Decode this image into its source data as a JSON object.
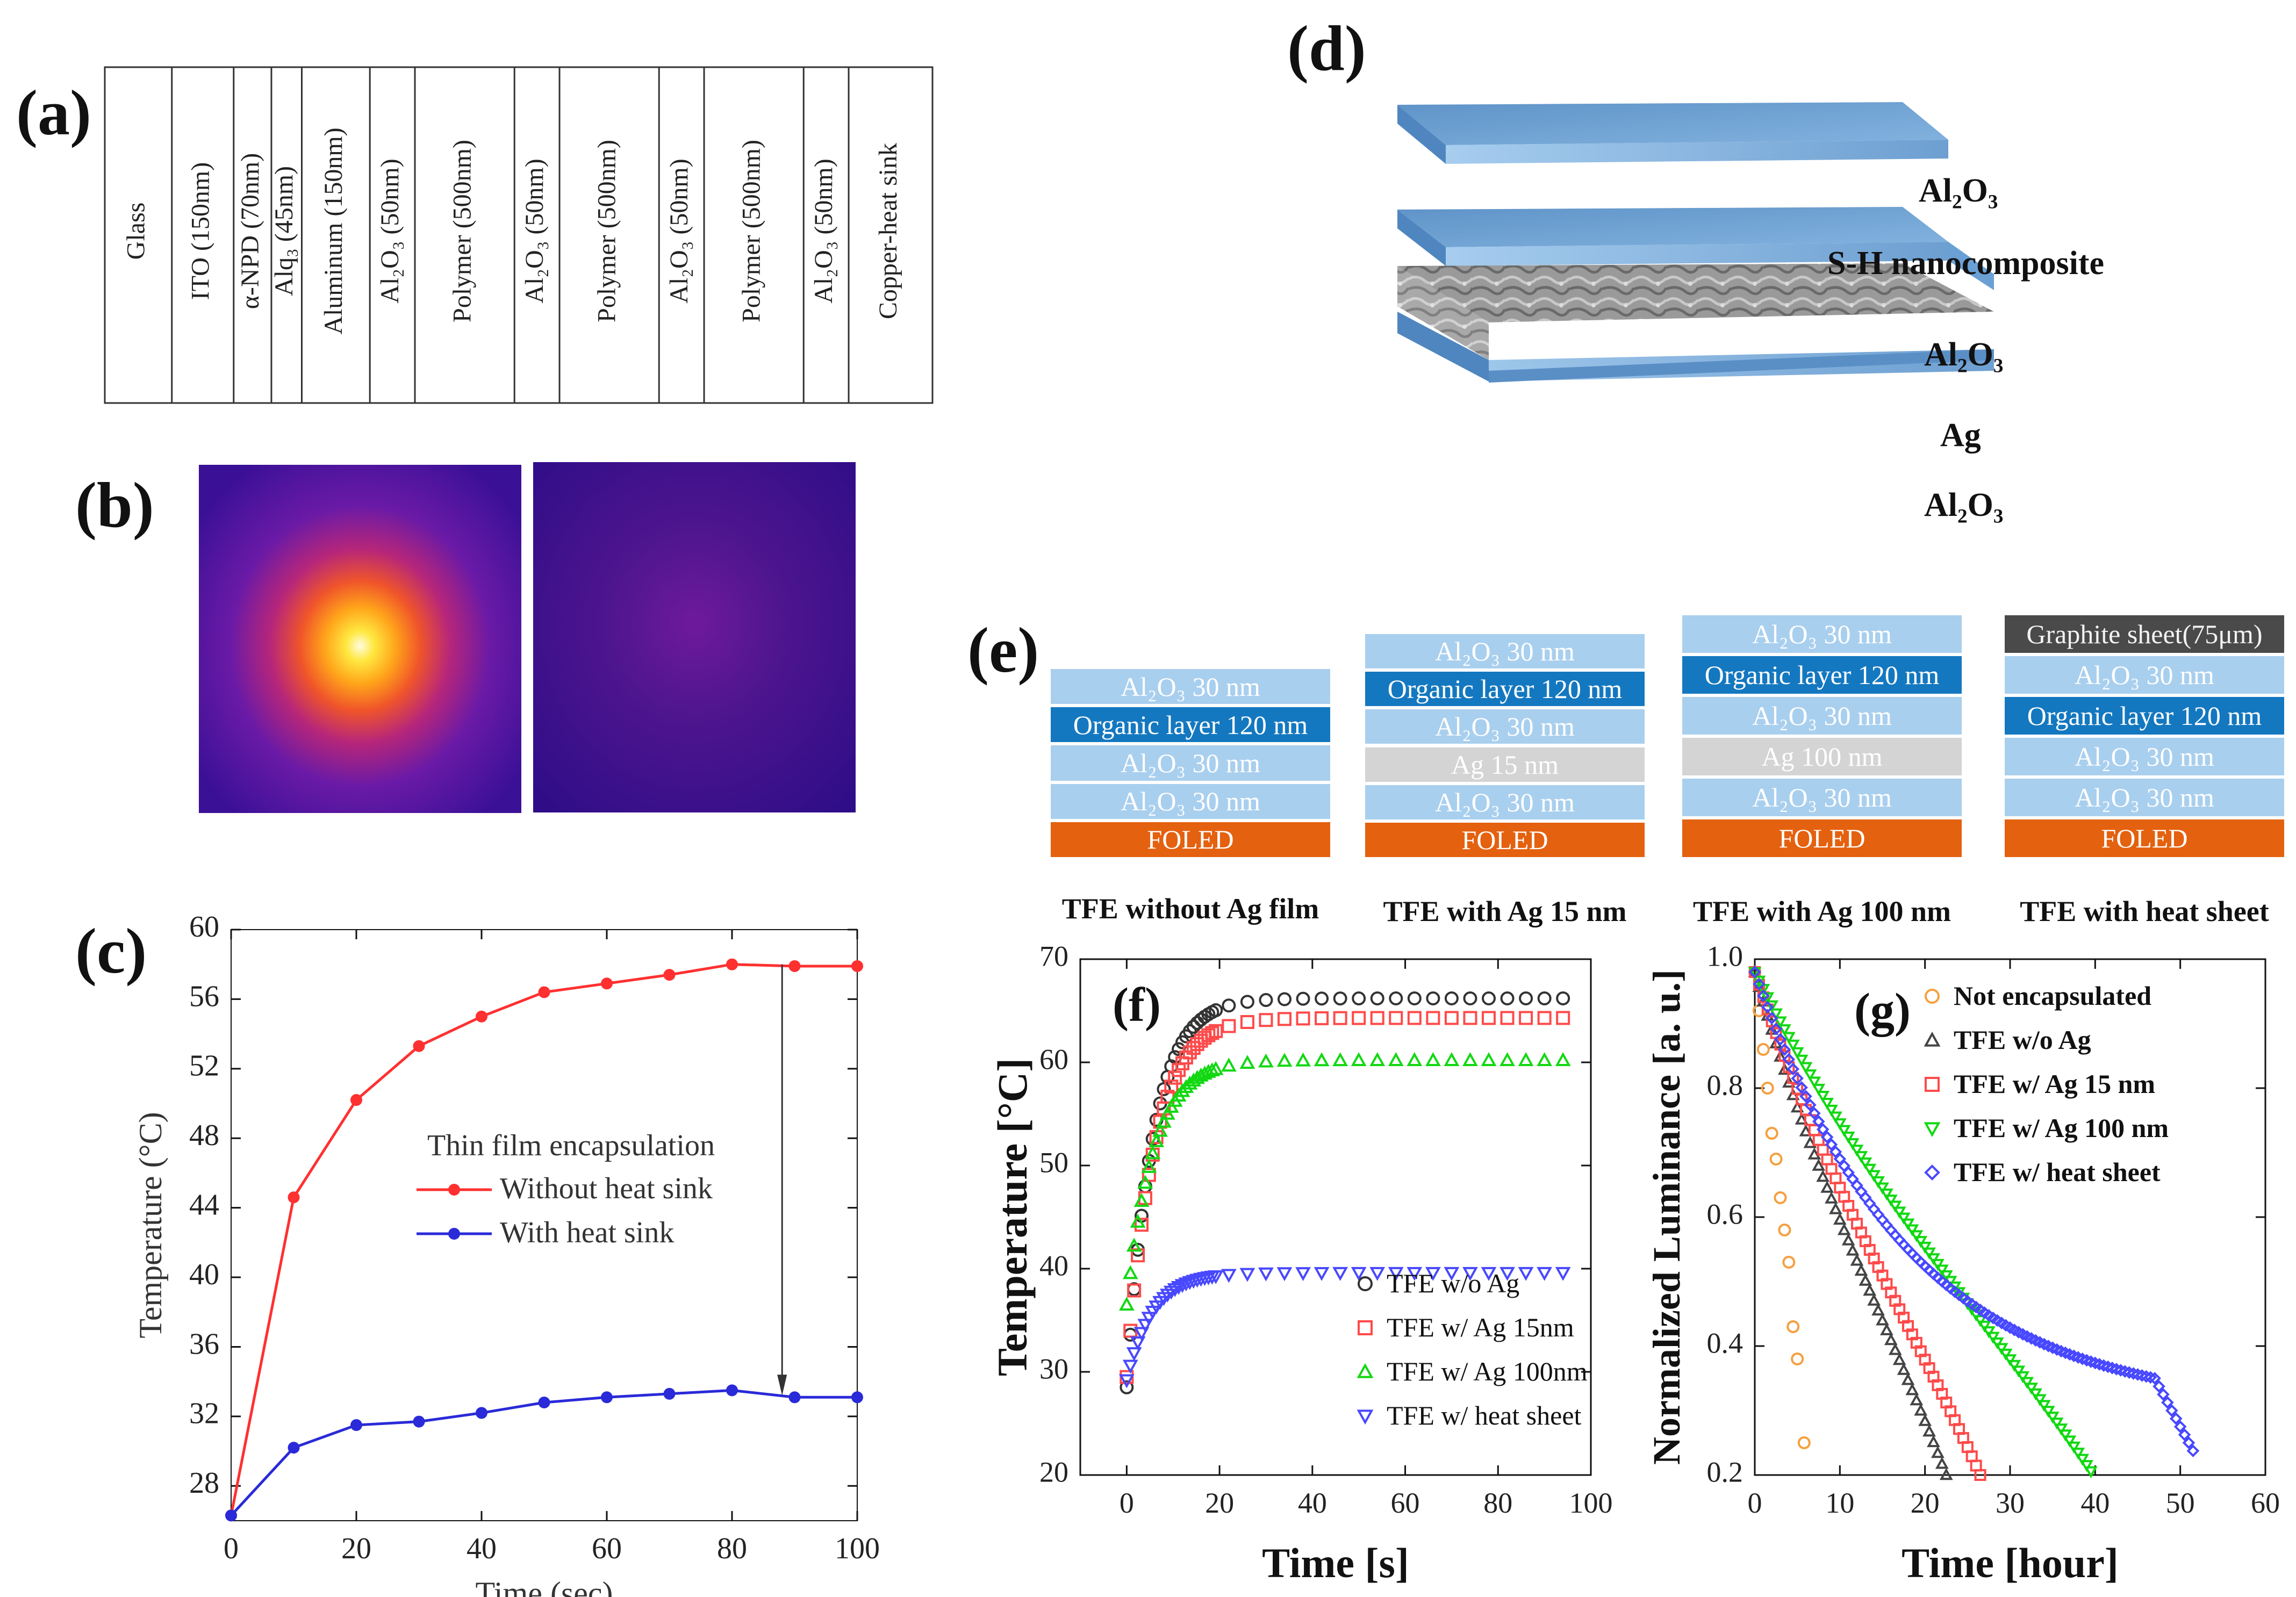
{
  "panel_labels": {
    "a": "(a)",
    "b": "(b)",
    "c": "(c)",
    "d": "(d)",
    "e": "(e)",
    "f": "(f)",
    "g": "(g)"
  },
  "panel_a": {
    "layers": [
      "Glass",
      "ITO (150nm)",
      "α-NPD (70nm)",
      "Alq₃ (45nm)",
      "Aluminum (150nm)",
      "Al₂O₃ (50nm)",
      "Polymer (500nm)",
      "Al₂O₃ (50nm)",
      "Polymer (500nm)",
      "Al₂O₃ (50nm)",
      "Polymer (500nm)",
      "Al₂O₃ (50nm)",
      "Copper-heat sink"
    ]
  },
  "panel_b": {
    "description_colors": {
      "hot": "#fff36a",
      "mid": "#f0552a",
      "cool": "#7a1fa8",
      "background": "#3a1096"
    }
  },
  "panel_d": {
    "labels": [
      "Al₂O₃",
      "S-H nanocomposite",
      "Al₂O₃",
      "Ag",
      "Al₂O₃"
    ],
    "colors": {
      "alumina": "#6fa3d4",
      "silver": "#9a9a9a"
    }
  },
  "panel_e": {
    "stacks": [
      {
        "caption": "TFE without Ag film",
        "layers": [
          "Al₂O₃ 30 nm",
          "Organic layer 120 nm",
          "Al₂O₃ 30 nm",
          "Al₂O₃ 30 nm",
          "FOLED"
        ]
      },
      {
        "caption": "TFE with Ag 15 nm",
        "layers": [
          "Al₂O₃ 30 nm",
          "Organic layer 120 nm",
          "Al₂O₃ 30 nm",
          "Ag 15 nm",
          "Al₂O₃ 30 nm",
          "FOLED"
        ]
      },
      {
        "caption": "TFE with Ag 100 nm",
        "layers": [
          "Al₂O₃ 30 nm",
          "Organic layer 120 nm",
          "Al₂O₃ 30 nm",
          "Ag 100 nm",
          "Al₂O₃ 30 nm",
          "FOLED"
        ]
      },
      {
        "caption": "TFE with heat sheet",
        "layers": [
          "Graphite sheet(75μm)",
          "Al₂O₃ 30 nm",
          "Organic layer 120 nm",
          "Al₂O₃ 30 nm",
          "Al₂O₃ 30 nm",
          "FOLED"
        ]
      }
    ],
    "colors": {
      "alumina": "#a9cfee",
      "organic": "#1478c0",
      "silver": "#d4d4d4",
      "foled": "#e4610f",
      "graphite": "#4a4a4a"
    }
  },
  "chart_data": [
    {
      "id": "c",
      "type": "line",
      "xlabel": "Time (sec)",
      "ylabel": "Temperature (°C)",
      "xlim": [
        0,
        100
      ],
      "ylim": [
        26,
        60
      ],
      "xticks": [
        0,
        20,
        40,
        60,
        80,
        100
      ],
      "yticks": [
        28,
        32,
        36,
        40,
        44,
        48,
        52,
        56,
        60
      ],
      "legend_title": "Thin film encapsulation",
      "legend_position": "center",
      "x": [
        0,
        10,
        20,
        30,
        40,
        50,
        60,
        70,
        80,
        90,
        100
      ],
      "series": [
        {
          "name": "Without heat sink",
          "color": "#ff3030",
          "values": [
            26.3,
            44.6,
            50.2,
            53.3,
            55.0,
            56.4,
            56.9,
            57.4,
            58.0,
            57.9,
            57.9
          ]
        },
        {
          "name": "With heat sink",
          "color": "#2a2ad8",
          "values": [
            26.3,
            30.2,
            31.5,
            31.7,
            32.2,
            32.8,
            33.1,
            33.3,
            33.5,
            33.1,
            33.1
          ]
        }
      ],
      "annotation": "downward arrow at x≈88 from y≈58 to y≈33"
    },
    {
      "id": "f",
      "type": "scatter",
      "xlabel": "Time [s]",
      "ylabel": "Temperature [°C]",
      "xlim": [
        -10,
        100
      ],
      "ylim": [
        20,
        70
      ],
      "xticks": [
        0,
        20,
        40,
        60,
        80,
        100
      ],
      "yticks": [
        20,
        30,
        40,
        50,
        60,
        70
      ],
      "legend_position": "bottom-right",
      "series": [
        {
          "name": "TFE w/o Ag",
          "color": "#333333",
          "marker": "circle",
          "params": {
            "t0": 28.5,
            "tmax": 66.2,
            "tau": 5.5
          }
        },
        {
          "name": "TFE w/ Ag 15nm",
          "color": "#ff4a4a",
          "marker": "square",
          "params": {
            "t0": 29.5,
            "tmax": 64.3,
            "tau": 5.8
          }
        },
        {
          "name": "TFE w/ Ag 100nm",
          "color": "#12d812",
          "marker": "triangle-up",
          "params": {
            "t0": 36.5,
            "tmax": 60.2,
            "tau": 5.8
          }
        },
        {
          "name": "TFE w/ heat sheet",
          "color": "#4848ff",
          "marker": "triangle-down",
          "params": {
            "t0": 29.2,
            "tmax": 39.6,
            "tau": 5.5
          }
        }
      ]
    },
    {
      "id": "g",
      "type": "scatter",
      "xlabel": "Time [hour]",
      "ylabel": "Normalized Luminance [a. u.]",
      "xlim": [
        0,
        60
      ],
      "ylim": [
        0.2,
        1.0
      ],
      "xticks": [
        0,
        10,
        20,
        30,
        40,
        50,
        60
      ],
      "yticks": [
        0.2,
        0.4,
        0.6,
        0.8,
        1.0
      ],
      "legend_position": "top-right",
      "series": [
        {
          "name": "Not encapsulated",
          "color": "#f5a040",
          "marker": "circle",
          "points": [
            [
              0,
              0.98
            ],
            [
              0.5,
              0.92
            ],
            [
              1,
              0.86
            ],
            [
              1.5,
              0.8
            ],
            [
              2,
              0.73
            ],
            [
              2.5,
              0.69
            ],
            [
              3,
              0.63
            ],
            [
              3.5,
              0.58
            ],
            [
              4,
              0.53
            ],
            [
              4.5,
              0.43
            ],
            [
              5,
              0.38
            ],
            [
              5.8,
              0.25
            ]
          ]
        },
        {
          "name": "TFE w/o Ag",
          "color": "#444444",
          "marker": "triangle-up",
          "params": {
            "end": 22.5,
            "p": 0.93
          }
        },
        {
          "name": "TFE w/ Ag 15 nm",
          "color": "#ff4a4a",
          "marker": "square",
          "params": {
            "end": 26.5,
            "p": 0.93
          }
        },
        {
          "name": "TFE w/ Ag 100 nm",
          "color": "#12d812",
          "marker": "triangle-down",
          "params": {
            "end": 39.8,
            "p": 0.9
          }
        },
        {
          "name": "TFE w/ heat sheet",
          "color": "#4848ff",
          "marker": "diamond",
          "params": {
            "end": 51.8
          }
        }
      ]
    }
  ]
}
